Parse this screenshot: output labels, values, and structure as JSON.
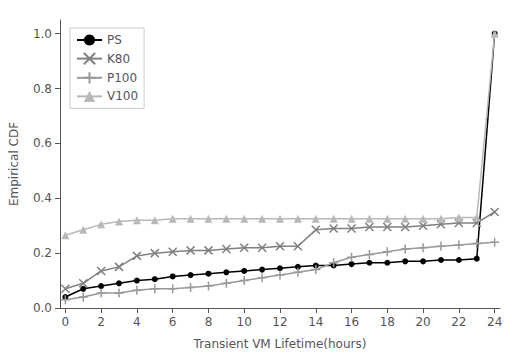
{
  "chart_data": {
    "type": "line",
    "xlabel": "Transient VM Lifetime(hours)",
    "ylabel": "Empirical CDF",
    "xlim": [
      -0.3,
      24.3
    ],
    "ylim": [
      0.0,
      1.05
    ],
    "xticks": [
      0,
      2,
      4,
      6,
      8,
      10,
      12,
      14,
      16,
      18,
      20,
      22,
      24
    ],
    "yticks": [
      {
        "value": 0.0,
        "label": "0.0"
      },
      0.2,
      0.4,
      0.6,
      0.8,
      {
        "value": 1.0,
        "label": "1.0"
      }
    ],
    "grid": false,
    "legend": "upper left",
    "x": [
      0,
      1,
      2,
      3,
      4,
      5,
      6,
      7,
      8,
      9,
      10,
      11,
      12,
      13,
      14,
      15,
      16,
      17,
      18,
      19,
      20,
      21,
      22,
      23,
      24
    ],
    "series": [
      {
        "name": "PS",
        "color": "#000000",
        "marker": "circle",
        "values": [
          0.04,
          0.07,
          0.08,
          0.09,
          0.1,
          0.105,
          0.115,
          0.12,
          0.125,
          0.13,
          0.135,
          0.14,
          0.145,
          0.15,
          0.155,
          0.155,
          0.16,
          0.165,
          0.165,
          0.17,
          0.17,
          0.175,
          0.175,
          0.18,
          1.0
        ]
      },
      {
        "name": "K80",
        "color": "#808080",
        "marker": "x",
        "values": [
          0.07,
          0.09,
          0.135,
          0.15,
          0.19,
          0.2,
          0.205,
          0.21,
          0.21,
          0.215,
          0.22,
          0.22,
          0.225,
          0.225,
          0.285,
          0.29,
          0.29,
          0.295,
          0.295,
          0.295,
          0.3,
          0.305,
          0.31,
          0.31,
          0.35
        ]
      },
      {
        "name": "P100",
        "color": "#999999",
        "marker": "plus",
        "values": [
          0.03,
          0.04,
          0.055,
          0.055,
          0.065,
          0.07,
          0.07,
          0.075,
          0.08,
          0.09,
          0.1,
          0.11,
          0.12,
          0.13,
          0.14,
          0.165,
          0.185,
          0.195,
          0.205,
          0.215,
          0.22,
          0.225,
          0.23,
          0.235,
          0.24
        ]
      },
      {
        "name": "V100",
        "color": "#b8b8b8",
        "marker": "triangle",
        "values": [
          0.265,
          0.285,
          0.305,
          0.315,
          0.32,
          0.32,
          0.325,
          0.325,
          0.325,
          0.325,
          0.325,
          0.325,
          0.325,
          0.325,
          0.325,
          0.325,
          0.325,
          0.325,
          0.325,
          0.325,
          0.325,
          0.325,
          0.33,
          0.33,
          1.0
        ]
      }
    ]
  }
}
